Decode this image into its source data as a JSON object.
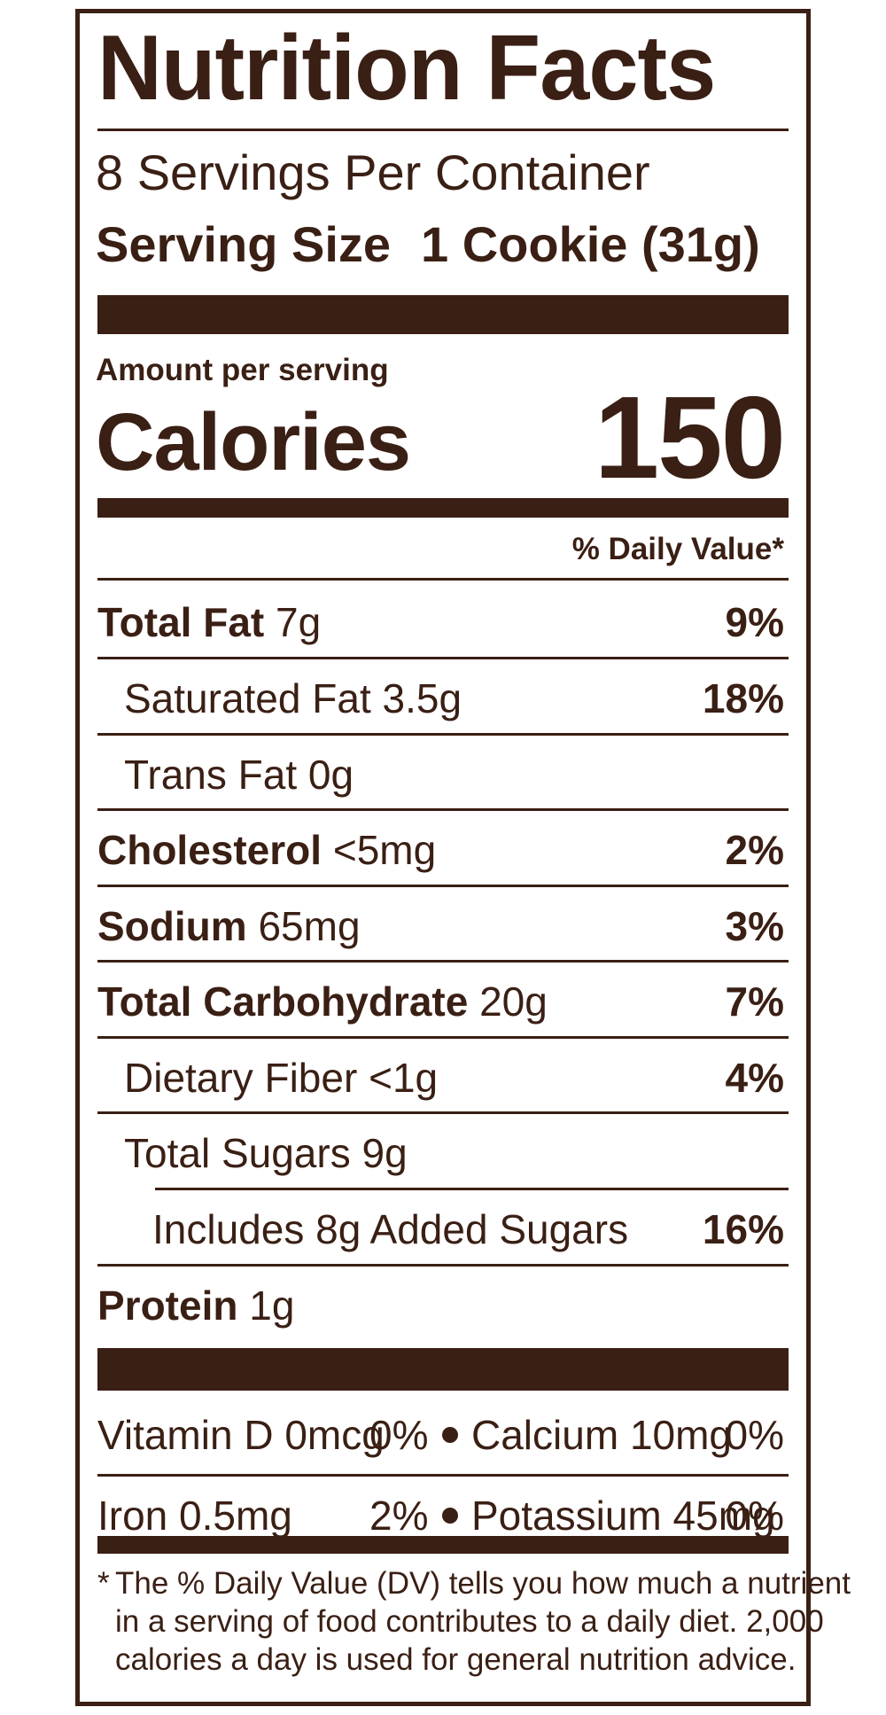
{
  "label": {
    "title": "Nutrition Facts",
    "servings_per_container": "8 Servings Per Container",
    "serving_size_label": "Serving Size",
    "serving_size_value": "1 Cookie (31g)",
    "amount_per_serving": "Amount per serving",
    "calories_label": "Calories",
    "calories_value": "150",
    "daily_value_header": "% Daily Value*"
  },
  "nutrients": [
    {
      "name": "Total Fat",
      "amount": "7g",
      "dv": "9%"
    },
    {
      "name": "Saturated Fat",
      "amount": "3.5g",
      "dv": "18%"
    },
    {
      "name": "Trans Fat",
      "amount": "0g",
      "dv": ""
    },
    {
      "name": "Cholesterol",
      "amount": "<5mg",
      "dv": "2%"
    },
    {
      "name": "Sodium",
      "amount": "65mg",
      "dv": "3%"
    },
    {
      "name": "Total Carbohydrate",
      "amount": "20g",
      "dv": "7%"
    },
    {
      "name": "Dietary Fiber",
      "amount": "<1g",
      "dv": "4%"
    },
    {
      "name": "Total Sugars",
      "amount": "9g",
      "dv": ""
    },
    {
      "name": "Includes 8g Added Sugars",
      "amount": "",
      "dv": "16%"
    },
    {
      "name": "Protein",
      "amount": "1g",
      "dv": ""
    }
  ],
  "vitamins": [
    {
      "name": "Vitamin D",
      "amount": "0mcg",
      "dv": "0%"
    },
    {
      "name": "Calcium",
      "amount": "10mg",
      "dv": "0%"
    },
    {
      "name": "Iron",
      "amount": "0.5mg",
      "dv": "2%"
    },
    {
      "name": "Potassium",
      "amount": "45mg",
      "dv": "0%"
    }
  ],
  "footnote": {
    "star": "*",
    "lines": [
      "The % Daily Value (DV) tells you how much a nutrient",
      "in a serving of food contributes to a daily diet. 2,000",
      "calories a day is used for general nutrition advice."
    ]
  },
  "colors": {
    "ink": "#3a1f14",
    "background": "#ffffff"
  }
}
